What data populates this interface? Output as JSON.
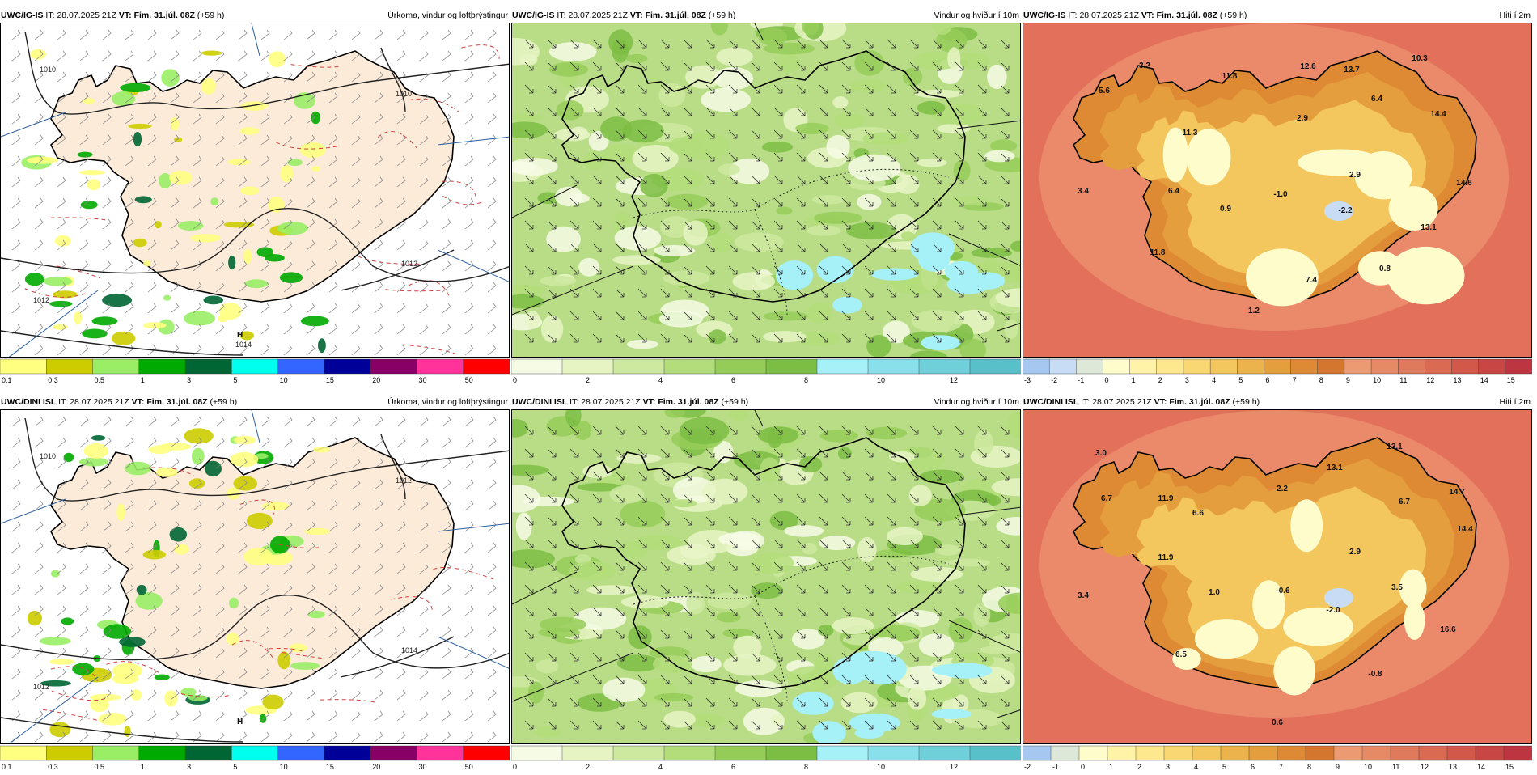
{
  "panels": [
    {
      "id": "precip-igis",
      "model": "UWC/IG-IS",
      "it_label": "IT:",
      "it_value": "28.07.2025 21Z",
      "vt_label": "VT:",
      "vt_value": "Fim. 31.júl. 08Z",
      "lead": "(+59 h)",
      "title": "Úrkoma, vindur og loftþrýstingur",
      "isobars": [
        "1010",
        "1010",
        "1012",
        "1012",
        "1014"
      ],
      "high_label": "H",
      "colorbar": {
        "ticks": [
          "0.1",
          "0.3",
          "0.5",
          "1",
          "3",
          "5",
          "10",
          "15",
          "20",
          "30",
          "50"
        ],
        "colors": [
          "#ffff80",
          "#cccc00",
          "#99ee66",
          "#00aa00",
          "#006633",
          "#00ffee",
          "#3366ff",
          "#000099",
          "#880066",
          "#ff3399",
          "#ff0000"
        ]
      }
    },
    {
      "id": "wind-igis",
      "model": "UWC/IG-IS",
      "it_label": "IT:",
      "it_value": "28.07.2025 21Z",
      "vt_label": "VT:",
      "vt_value": "Fim. 31.júl. 08Z",
      "lead": "(+59 h)",
      "title": "Vindur og hviður í 10m",
      "colorbar": {
        "ticks": [
          "0",
          "2",
          "4",
          "6",
          "8",
          "10",
          "12"
        ],
        "colors": [
          "#f6fbe6",
          "#e6f4c4",
          "#cde9a0",
          "#b3dd7a",
          "#95cc58",
          "#7cbd44",
          "#a6f0f8",
          "#8ae0ea",
          "#6fd0da",
          "#58c0c8"
        ]
      }
    },
    {
      "id": "temp-igis",
      "model": "UWC/IG-IS",
      "it_label": "IT:",
      "it_value": "28.07.2025 21Z",
      "vt_label": "VT:",
      "vt_value": "Fim. 31.júl. 08Z",
      "lead": "(+59 h)",
      "title": "Hiti í 2m",
      "values": [
        "3.2",
        "11.8",
        "12.6",
        "13.7",
        "10.3",
        "5.6",
        "11.3",
        "2.9",
        "6.4",
        "14.4",
        "2.9",
        "14.6",
        "3.4",
        "6.4",
        "0.9",
        "-1.0",
        "-2.2",
        "13.1",
        "11.8",
        "0.8",
        "7.4",
        "1.2"
      ],
      "colorbar": {
        "ticks": [
          "-3",
          "-2",
          "-1",
          "0",
          "1",
          "2",
          "3",
          "4",
          "5",
          "6",
          "7",
          "8",
          "9",
          "10",
          "11",
          "12",
          "13",
          "14",
          "15"
        ],
        "colors": [
          "#a6c8f0",
          "#c8dcf5",
          "#dde8d8",
          "#fffccc",
          "#fff3a8",
          "#fde88e",
          "#f9d874",
          "#f3c65e",
          "#ecb24c",
          "#e59e3e",
          "#de8a34",
          "#d5762e",
          "#ec9a72",
          "#e68a66",
          "#e07a5c",
          "#da6a52",
          "#d2584a",
          "#c84644",
          "#bd3540"
        ]
      }
    },
    {
      "id": "precip-dini",
      "model": "UWC/DINI ISL",
      "it_label": "IT:",
      "it_value": "28.07.2025 21Z",
      "vt_label": "VT:",
      "vt_value": "Fim. 31.júl. 08Z",
      "lead": "(+59 h)",
      "title": "Úrkoma, vindur og loftþrýstingur",
      "isobars": [
        "1010",
        "1012",
        "1012",
        "1014"
      ],
      "high_label": "H",
      "colorbar": {
        "ticks": [
          "0.1",
          "0.3",
          "0.5",
          "1",
          "3",
          "5",
          "10",
          "15",
          "20",
          "30",
          "50"
        ],
        "colors": [
          "#ffff80",
          "#cccc00",
          "#99ee66",
          "#00aa00",
          "#006633",
          "#00ffee",
          "#3366ff",
          "#000099",
          "#880066",
          "#ff3399",
          "#ff0000"
        ]
      }
    },
    {
      "id": "wind-dini",
      "model": "UWC/DINI ISL",
      "it_label": "IT:",
      "it_value": "28.07.2025 21Z",
      "vt_label": "VT:",
      "vt_value": "Fim. 31.júl. 08Z",
      "lead": "(+59 h)",
      "title": "Vindur og hviður í 10m",
      "colorbar": {
        "ticks": [
          "0",
          "2",
          "4",
          "6",
          "8",
          "10",
          "12"
        ],
        "colors": [
          "#f6fbe6",
          "#e6f4c4",
          "#cde9a0",
          "#b3dd7a",
          "#95cc58",
          "#7cbd44",
          "#a6f0f8",
          "#8ae0ea",
          "#6fd0da",
          "#58c0c8"
        ]
      }
    },
    {
      "id": "temp-dini",
      "model": "UWC/DINI ISL",
      "it_label": "IT:",
      "it_value": "28.07.2025 21Z",
      "vt_label": "VT:",
      "vt_value": "Fim. 31.júl. 08Z",
      "lead": "(+59 h)",
      "title": "Hiti í 2m",
      "values": [
        "3.0",
        "13.1",
        "6.7",
        "11.9",
        "13.1",
        "2.2",
        "6.7",
        "14.7",
        "6.6",
        "14.4",
        "11.9",
        "2.9",
        "3.4",
        "1.0",
        "-0.6",
        "3.5",
        "-2.0",
        "16.6",
        "6.5",
        "-0.8",
        "0.6"
      ],
      "colorbar": {
        "ticks": [
          "-2",
          "-1",
          "0",
          "1",
          "2",
          "3",
          "4",
          "5",
          "6",
          "7",
          "8",
          "9",
          "10",
          "11",
          "12",
          "13",
          "14",
          "15"
        ],
        "colors": [
          "#a6c8f0",
          "#dde8d8",
          "#fffccc",
          "#fff3a8",
          "#fde88e",
          "#f9d874",
          "#f3c65e",
          "#ecb24c",
          "#e59e3e",
          "#de8a34",
          "#d5762e",
          "#ec9a72",
          "#e68a66",
          "#e07a5c",
          "#da6a52",
          "#d2584a",
          "#c84644",
          "#bd3540"
        ]
      }
    }
  ]
}
